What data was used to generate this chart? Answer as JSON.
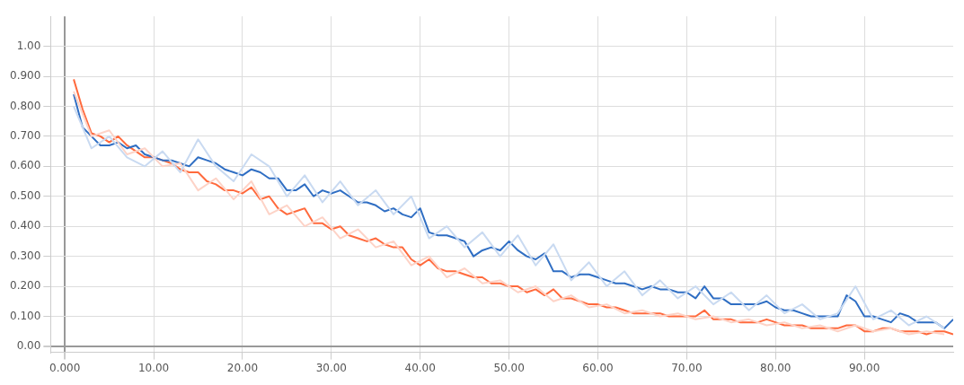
{
  "chart_data": {
    "type": "line",
    "xlim": [
      -1.6,
      100
    ],
    "ylim": [
      -0.02,
      1.1
    ],
    "xticks": [
      {
        "value": 0,
        "label": "0.000"
      },
      {
        "value": 10,
        "label": "10.00"
      },
      {
        "value": 20,
        "label": "20.00"
      },
      {
        "value": 30,
        "label": "30.00"
      },
      {
        "value": 40,
        "label": "40.00"
      },
      {
        "value": 50,
        "label": "50.00"
      },
      {
        "value": 60,
        "label": "60.00"
      },
      {
        "value": 70,
        "label": "70.00"
      },
      {
        "value": 80,
        "label": "80.00"
      },
      {
        "value": 90,
        "label": "90.00"
      }
    ],
    "yticks": [
      {
        "value": 0,
        "label": "0.00"
      },
      {
        "value": 0.1,
        "label": "0.100"
      },
      {
        "value": 0.2,
        "label": "0.200"
      },
      {
        "value": 0.3,
        "label": "0.300"
      },
      {
        "value": 0.4,
        "label": "0.400"
      },
      {
        "value": 0.5,
        "label": "0.500"
      },
      {
        "value": 0.6,
        "label": "0.600"
      },
      {
        "value": 0.7,
        "label": "0.700"
      },
      {
        "value": 0.8,
        "label": "0.800"
      },
      {
        "value": 0.9,
        "label": "0.900"
      },
      {
        "value": 1,
        "label": "1.00"
      }
    ],
    "grid": true,
    "legend": false,
    "marker": "none",
    "line_style": "solid",
    "series": [
      {
        "color": "#c9daf1",
        "x": [
          1,
          3,
          5,
          7,
          9,
          11,
          13,
          15,
          17,
          19,
          21,
          23,
          25,
          27,
          29,
          31,
          33,
          35,
          37,
          39,
          41,
          43,
          45,
          47,
          49,
          51,
          53,
          55,
          57,
          59,
          61,
          63,
          65,
          67,
          69,
          71,
          73,
          75,
          77,
          79,
          81,
          83,
          85,
          87,
          89,
          91,
          93,
          95,
          97,
          99
        ],
        "values": [
          0.8,
          0.66,
          0.7,
          0.63,
          0.6,
          0.65,
          0.58,
          0.69,
          0.6,
          0.55,
          0.64,
          0.6,
          0.5,
          0.57,
          0.48,
          0.55,
          0.47,
          0.52,
          0.44,
          0.5,
          0.36,
          0.4,
          0.33,
          0.38,
          0.3,
          0.37,
          0.27,
          0.34,
          0.22,
          0.28,
          0.2,
          0.25,
          0.17,
          0.22,
          0.16,
          0.2,
          0.14,
          0.18,
          0.12,
          0.17,
          0.11,
          0.14,
          0.09,
          0.11,
          0.2,
          0.09,
          0.12,
          0.07,
          0.1,
          0.06
        ]
      },
      {
        "color": "#fdd3c7",
        "x": [
          1,
          3,
          5,
          7,
          9,
          11,
          13,
          15,
          17,
          19,
          21,
          23,
          25,
          27,
          29,
          31,
          33,
          35,
          37,
          39,
          41,
          43,
          45,
          47,
          49,
          51,
          53,
          55,
          57,
          59,
          61,
          63,
          65,
          67,
          69,
          71,
          73,
          75,
          77,
          79,
          81,
          83,
          85,
          87,
          89,
          91,
          93,
          95,
          97,
          99
        ],
        "values": [
          0.85,
          0.7,
          0.72,
          0.64,
          0.66,
          0.6,
          0.61,
          0.52,
          0.56,
          0.49,
          0.55,
          0.44,
          0.47,
          0.4,
          0.43,
          0.36,
          0.39,
          0.33,
          0.35,
          0.27,
          0.3,
          0.23,
          0.26,
          0.21,
          0.22,
          0.18,
          0.2,
          0.15,
          0.17,
          0.13,
          0.14,
          0.11,
          0.12,
          0.1,
          0.11,
          0.09,
          0.1,
          0.08,
          0.09,
          0.07,
          0.08,
          0.06,
          0.07,
          0.05,
          0.07,
          0.05,
          0.06,
          0.04,
          0.05,
          0.04
        ]
      },
      {
        "color": "#2f6ec3",
        "x": [
          1,
          2,
          3,
          4,
          5,
          6,
          7,
          8,
          9,
          10,
          11,
          12,
          13,
          14,
          15,
          16,
          17,
          18,
          19,
          20,
          21,
          22,
          23,
          24,
          25,
          26,
          27,
          28,
          29,
          30,
          31,
          32,
          33,
          34,
          35,
          36,
          37,
          38,
          39,
          40,
          41,
          42,
          43,
          44,
          45,
          46,
          47,
          48,
          49,
          50,
          51,
          52,
          53,
          54,
          55,
          56,
          57,
          58,
          59,
          60,
          61,
          62,
          63,
          64,
          65,
          66,
          67,
          68,
          69,
          70,
          71,
          72,
          73,
          74,
          75,
          76,
          77,
          78,
          79,
          80,
          81,
          82,
          83,
          84,
          85,
          86,
          87,
          88,
          89,
          90,
          91,
          92,
          93,
          94,
          95,
          96,
          97,
          98,
          99,
          100
        ],
        "values": [
          0.84,
          0.73,
          0.7,
          0.67,
          0.67,
          0.68,
          0.66,
          0.67,
          0.64,
          0.63,
          0.62,
          0.62,
          0.61,
          0.6,
          0.63,
          0.62,
          0.61,
          0.59,
          0.58,
          0.57,
          0.59,
          0.58,
          0.56,
          0.56,
          0.52,
          0.52,
          0.54,
          0.5,
          0.52,
          0.51,
          0.52,
          0.5,
          0.48,
          0.48,
          0.47,
          0.45,
          0.46,
          0.44,
          0.43,
          0.46,
          0.38,
          0.37,
          0.37,
          0.36,
          0.35,
          0.3,
          0.32,
          0.33,
          0.32,
          0.35,
          0.32,
          0.3,
          0.29,
          0.31,
          0.25,
          0.25,
          0.23,
          0.24,
          0.24,
          0.23,
          0.22,
          0.21,
          0.21,
          0.2,
          0.19,
          0.2,
          0.19,
          0.19,
          0.18,
          0.18,
          0.16,
          0.2,
          0.16,
          0.16,
          0.14,
          0.14,
          0.14,
          0.14,
          0.15,
          0.13,
          0.12,
          0.12,
          0.11,
          0.1,
          0.1,
          0.1,
          0.1,
          0.17,
          0.15,
          0.1,
          0.1,
          0.09,
          0.08,
          0.11,
          0.1,
          0.08,
          0.08,
          0.08,
          0.06,
          0.09
        ]
      },
      {
        "color": "#ff6a3d",
        "x": [
          1,
          2,
          3,
          4,
          5,
          6,
          7,
          8,
          9,
          10,
          11,
          12,
          13,
          14,
          15,
          16,
          17,
          18,
          19,
          20,
          21,
          22,
          23,
          24,
          25,
          26,
          27,
          28,
          29,
          30,
          31,
          32,
          33,
          34,
          35,
          36,
          37,
          38,
          39,
          40,
          41,
          42,
          43,
          44,
          45,
          46,
          47,
          48,
          49,
          50,
          51,
          52,
          53,
          54,
          55,
          56,
          57,
          58,
          59,
          60,
          61,
          62,
          63,
          64,
          65,
          66,
          67,
          68,
          69,
          70,
          71,
          72,
          73,
          74,
          75,
          76,
          77,
          78,
          79,
          80,
          81,
          82,
          83,
          84,
          85,
          86,
          87,
          88,
          89,
          90,
          91,
          92,
          93,
          94,
          95,
          96,
          97,
          98,
          99,
          100
        ],
        "values": [
          0.89,
          0.79,
          0.71,
          0.7,
          0.68,
          0.7,
          0.67,
          0.65,
          0.63,
          0.63,
          0.62,
          0.61,
          0.59,
          0.58,
          0.58,
          0.55,
          0.54,
          0.52,
          0.52,
          0.51,
          0.53,
          0.49,
          0.5,
          0.46,
          0.44,
          0.45,
          0.46,
          0.41,
          0.41,
          0.39,
          0.4,
          0.37,
          0.36,
          0.35,
          0.36,
          0.34,
          0.33,
          0.33,
          0.29,
          0.27,
          0.29,
          0.26,
          0.25,
          0.25,
          0.24,
          0.23,
          0.23,
          0.21,
          0.21,
          0.2,
          0.2,
          0.18,
          0.19,
          0.17,
          0.19,
          0.16,
          0.16,
          0.15,
          0.14,
          0.14,
          0.13,
          0.13,
          0.12,
          0.11,
          0.11,
          0.11,
          0.11,
          0.1,
          0.1,
          0.1,
          0.1,
          0.12,
          0.09,
          0.09,
          0.09,
          0.08,
          0.08,
          0.08,
          0.09,
          0.08,
          0.07,
          0.07,
          0.07,
          0.06,
          0.06,
          0.06,
          0.06,
          0.07,
          0.07,
          0.05,
          0.05,
          0.06,
          0.06,
          0.05,
          0.05,
          0.05,
          0.04,
          0.05,
          0.05,
          0.04
        ]
      }
    ]
  }
}
